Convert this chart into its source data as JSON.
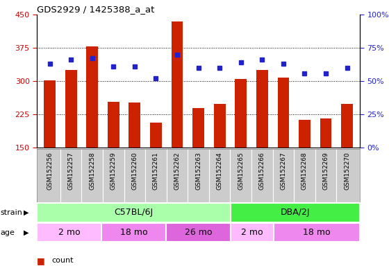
{
  "title": "GDS2929 / 1425388_a_at",
  "samples": [
    "GSM152256",
    "GSM152257",
    "GSM152258",
    "GSM152259",
    "GSM152260",
    "GSM152261",
    "GSM152262",
    "GSM152263",
    "GSM152264",
    "GSM152265",
    "GSM152266",
    "GSM152267",
    "GSM152268",
    "GSM152269",
    "GSM152270"
  ],
  "counts": [
    302,
    325,
    378,
    253,
    252,
    207,
    435,
    240,
    248,
    305,
    325,
    308,
    213,
    216,
    248
  ],
  "percentile_ranks": [
    63,
    66,
    67,
    61,
    61,
    52,
    70,
    60,
    60,
    64,
    66,
    63,
    56,
    56,
    60
  ],
  "ylim_left": [
    150,
    450
  ],
  "ylim_right": [
    0,
    100
  ],
  "yticks_left": [
    150,
    225,
    300,
    375,
    450
  ],
  "yticks_right": [
    0,
    25,
    50,
    75,
    100
  ],
  "bar_color": "#cc2200",
  "dot_color": "#2222cc",
  "bg_color": "#ffffff",
  "tick_area_color": "#cccccc",
  "strain_groups": [
    {
      "label": "C57BL/6J",
      "start": 0,
      "end": 9,
      "color": "#aaffaa"
    },
    {
      "label": "DBA/2J",
      "start": 9,
      "end": 15,
      "color": "#44ee44"
    }
  ],
  "age_groups": [
    {
      "label": "2 mo",
      "start": 0,
      "end": 3,
      "color": "#ffbbff"
    },
    {
      "label": "18 mo",
      "start": 3,
      "end": 6,
      "color": "#ee88ee"
    },
    {
      "label": "26 mo",
      "start": 6,
      "end": 9,
      "color": "#dd66dd"
    },
    {
      "label": "2 mo",
      "start": 9,
      "end": 11,
      "color": "#ffbbff"
    },
    {
      "label": "18 mo",
      "start": 11,
      "end": 15,
      "color": "#ee88ee"
    }
  ],
  "legend_count_color": "#cc2200",
  "legend_pct_color": "#2222cc",
  "grid_dotted_values": [
    225,
    300,
    375
  ]
}
